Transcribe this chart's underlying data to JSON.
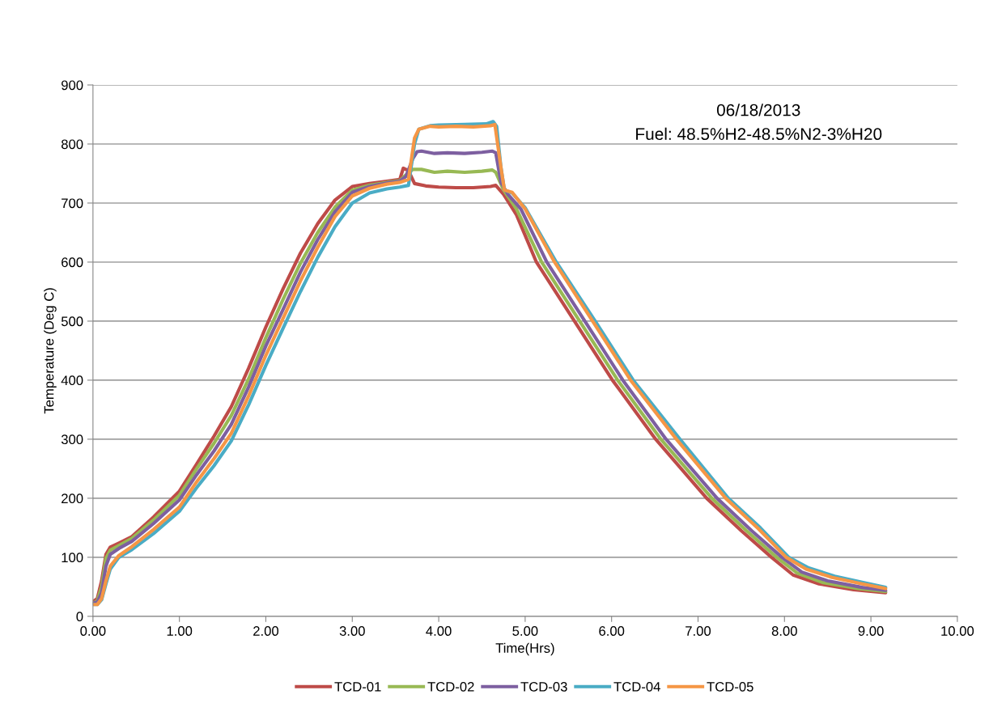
{
  "chart_data": {
    "type": "line",
    "xlabel": "Time(Hrs)",
    "ylabel": "Temperature (Deg C)",
    "annotations": [
      "06/18/2013",
      "Fuel: 48.5%H2-48.5%N2-3%H20"
    ],
    "xlim": [
      0,
      10
    ],
    "ylim": [
      0,
      900
    ],
    "xticks": [
      {
        "value": 0,
        "label": "0.00"
      },
      {
        "value": 1,
        "label": "1.00"
      },
      {
        "value": 2,
        "label": "2.00"
      },
      {
        "value": 3,
        "label": "3.00"
      },
      {
        "value": 4,
        "label": "4.00"
      },
      {
        "value": 5,
        "label": "5.00"
      },
      {
        "value": 6,
        "label": "6.00"
      },
      {
        "value": 7,
        "label": "7.00"
      },
      {
        "value": 8,
        "label": "8.00"
      },
      {
        "value": 9,
        "label": "9.00"
      },
      {
        "value": 10,
        "label": "10.00"
      }
    ],
    "yticks": [
      0,
      100,
      200,
      300,
      400,
      500,
      600,
      700,
      800,
      900
    ],
    "grid": "y",
    "legend": "bottom",
    "marker": "none",
    "line_style": "solid",
    "series": [
      {
        "name": "TCD-01",
        "color": "#be4b48",
        "x": [
          0,
          0.05,
          0.1,
          0.15,
          0.2,
          0.3,
          0.45,
          0.7,
          1.0,
          1.2,
          1.4,
          1.6,
          1.8,
          2.0,
          2.2,
          2.4,
          2.6,
          2.8,
          3.0,
          3.2,
          3.4,
          3.55,
          3.59,
          3.65,
          3.72,
          3.85,
          4.0,
          4.2,
          4.4,
          4.6,
          4.66,
          4.75,
          4.9,
          5.13,
          5.57,
          6.01,
          6.51,
          7.1,
          7.5,
          7.85,
          8.1,
          8.4,
          8.8,
          9.17
        ],
        "values": [
          25,
          30,
          60,
          105,
          117,
          124,
          135,
          168,
          212,
          258,
          305,
          355,
          420,
          490,
          555,
          615,
          665,
          705,
          728,
          733,
          737,
          740,
          759,
          755,
          733,
          729,
          727,
          726,
          726,
          728,
          730,
          715,
          680,
          600,
          500,
          400,
          300,
          200,
          145,
          100,
          70,
          55,
          45,
          40
        ]
      },
      {
        "name": "TCD-02",
        "color": "#98b954",
        "x": [
          0,
          0.05,
          0.1,
          0.15,
          0.2,
          0.3,
          0.45,
          0.7,
          1.0,
          1.2,
          1.4,
          1.6,
          1.8,
          2.0,
          2.2,
          2.4,
          2.6,
          2.8,
          3.0,
          3.2,
          3.4,
          3.55,
          3.6,
          3.7,
          3.8,
          3.95,
          4.1,
          4.3,
          4.5,
          4.62,
          4.66,
          4.75,
          4.9,
          5.19,
          5.63,
          6.07,
          6.57,
          7.16,
          7.56,
          7.91,
          8.15,
          8.45,
          8.85,
          9.17
        ],
        "values": [
          22,
          26,
          50,
          98,
          112,
          120,
          132,
          163,
          205,
          250,
          293,
          340,
          402,
          472,
          537,
          598,
          650,
          693,
          722,
          730,
          735,
          738,
          745,
          757,
          757,
          752,
          754,
          752,
          754,
          756,
          752,
          722,
          690,
          600,
          500,
          400,
          300,
          200,
          145,
          100,
          73,
          57,
          47,
          42
        ]
      },
      {
        "name": "TCD-03",
        "color": "#7d5fa0",
        "x": [
          0,
          0.05,
          0.1,
          0.15,
          0.2,
          0.3,
          0.45,
          0.7,
          1.0,
          1.2,
          1.4,
          1.6,
          1.8,
          2.0,
          2.2,
          2.4,
          2.6,
          2.8,
          3.0,
          3.2,
          3.4,
          3.55,
          3.62,
          3.7,
          3.75,
          3.8,
          3.95,
          4.1,
          4.3,
          4.5,
          4.62,
          4.66,
          4.72,
          4.8,
          4.95,
          5.25,
          5.69,
          6.13,
          6.63,
          7.22,
          7.62,
          7.97,
          8.2,
          8.5,
          8.9,
          9.17
        ],
        "values": [
          22,
          24,
          40,
          85,
          105,
          115,
          127,
          157,
          197,
          240,
          280,
          325,
          388,
          458,
          520,
          583,
          638,
          685,
          718,
          728,
          734,
          737,
          745,
          775,
          787,
          788,
          784,
          785,
          784,
          786,
          788,
          785,
          735,
          715,
          690,
          600,
          500,
          400,
          300,
          200,
          145,
          100,
          75,
          60,
          49,
          44
        ]
      },
      {
        "name": "TCD-04",
        "color": "#4aacc5",
        "x": [
          0,
          0.05,
          0.1,
          0.15,
          0.2,
          0.3,
          0.45,
          0.7,
          1.0,
          1.2,
          1.4,
          1.6,
          1.8,
          2.0,
          2.2,
          2.4,
          2.6,
          2.8,
          3.0,
          3.2,
          3.4,
          3.55,
          3.65,
          3.72,
          3.77,
          3.9,
          4.0,
          4.3,
          4.55,
          4.63,
          4.67,
          4.72,
          4.76,
          4.85,
          5.0,
          5.36,
          5.81,
          6.25,
          6.79,
          7.35,
          7.72,
          8.05,
          8.28,
          8.58,
          8.92,
          9.17
        ],
        "values": [
          20,
          20,
          28,
          55,
          80,
          100,
          113,
          140,
          178,
          218,
          255,
          297,
          358,
          425,
          488,
          550,
          608,
          660,
          700,
          717,
          724,
          727,
          730,
          800,
          825,
          831,
          832,
          833,
          834,
          838,
          830,
          760,
          722,
          717,
          692,
          600,
          500,
          400,
          300,
          200,
          150,
          100,
          82,
          68,
          57,
          49
        ]
      },
      {
        "name": "TCD-05",
        "color": "#f59645",
        "x": [
          0,
          0.05,
          0.1,
          0.15,
          0.2,
          0.3,
          0.45,
          0.7,
          1.0,
          1.2,
          1.4,
          1.6,
          1.8,
          2.0,
          2.2,
          2.4,
          2.6,
          2.8,
          3.0,
          3.2,
          3.4,
          3.55,
          3.65,
          3.72,
          3.77,
          3.9,
          4.0,
          4.2,
          4.4,
          4.6,
          4.65,
          4.72,
          4.76,
          4.85,
          5.0,
          5.34,
          5.78,
          6.22,
          6.75,
          7.32,
          7.7,
          8.02,
          8.25,
          8.55,
          8.9,
          9.17
        ],
        "values": [
          20,
          20,
          30,
          60,
          85,
          103,
          118,
          147,
          185,
          228,
          267,
          310,
          373,
          442,
          505,
          568,
          625,
          677,
          712,
          725,
          732,
          735,
          740,
          810,
          825,
          830,
          829,
          830,
          829,
          831,
          833,
          760,
          722,
          718,
          690,
          600,
          500,
          400,
          300,
          200,
          148,
          100,
          80,
          66,
          55,
          47
        ]
      }
    ]
  }
}
